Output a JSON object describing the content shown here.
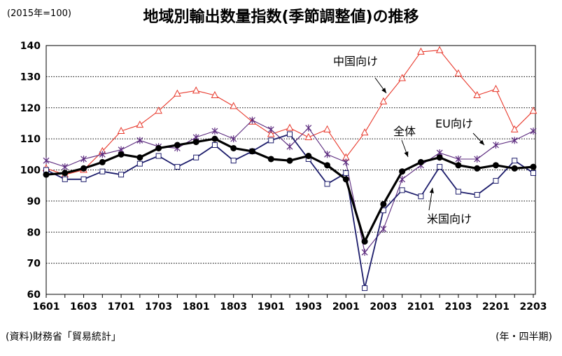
{
  "unit_label": "(2015年=100)",
  "title": "地域別輸出数量指数(季節調整値)の推移",
  "source": "(資料)財務省「貿易統計」",
  "x_unit_label": "(年・四半期)",
  "chart_data": {
    "type": "line",
    "title": "地域別輸出数量指数(季節調整値)の推移",
    "xlabel": "",
    "ylabel": "",
    "ylim": [
      60,
      140
    ],
    "yticks": [
      60,
      70,
      80,
      90,
      100,
      110,
      120,
      130,
      140
    ],
    "grid": "horizontal dotted",
    "x": [
      "1601",
      "1602",
      "1603",
      "1604",
      "1701",
      "1702",
      "1703",
      "1704",
      "1801",
      "1802",
      "1803",
      "1804",
      "1901",
      "1902",
      "1903",
      "1904",
      "2001",
      "2002",
      "2003",
      "2004",
      "2101",
      "2102",
      "2103",
      "2104",
      "2201",
      "2202",
      "2203"
    ],
    "x_tick_labels": [
      "1601",
      "1603",
      "1701",
      "1703",
      "1801",
      "1803",
      "1901",
      "1903",
      "2001",
      "2003",
      "2101",
      "2103",
      "2201",
      "2203"
    ],
    "series": [
      {
        "name": "中国向け",
        "color": "#e8392c",
        "marker": "triangle",
        "values": [
          100.5,
          98.5,
          100,
          106,
          112.5,
          114.5,
          119,
          124.5,
          125.5,
          124,
          120.5,
          115.5,
          111.5,
          113.5,
          110.5,
          113,
          104,
          112,
          122,
          129.5,
          138,
          138.5,
          131,
          124,
          126,
          113,
          119
        ]
      },
      {
        "name": "EU向け",
        "color": "#5b2a7e",
        "marker": "star",
        "values": [
          103,
          101,
          103.5,
          105,
          106.5,
          109.5,
          107.5,
          107,
          110.5,
          112.5,
          110,
          116,
          113,
          107.5,
          113.5,
          105,
          102.5,
          73.5,
          81,
          97,
          101.5,
          105.5,
          103.5,
          103.5,
          108,
          109.5,
          112.5
        ]
      },
      {
        "name": "米国向け",
        "color": "#1c1c6b",
        "marker": "square",
        "values": [
          100,
          97,
          97,
          99.5,
          98.5,
          102,
          104.5,
          101,
          104,
          108,
          103,
          106,
          109.5,
          111.5,
          103.5,
          95.5,
          99,
          62,
          87,
          93.5,
          91.5,
          101,
          93,
          92,
          96.5,
          103,
          99
        ]
      },
      {
        "name": "全体",
        "color": "#000000",
        "marker": "circle",
        "values": [
          98.5,
          99,
          100.5,
          102.5,
          105,
          104,
          107,
          108,
          109,
          110,
          107,
          106,
          103.5,
          103,
          104.5,
          101.5,
          97,
          77,
          89,
          99.5,
          102.5,
          104,
          101.5,
          100.5,
          101.5,
          100.5,
          101
        ]
      }
    ],
    "annotations": [
      {
        "text": "中国向け",
        "series": "中国向け"
      },
      {
        "text": "EU向け",
        "series": "EU向け"
      },
      {
        "text": "全体",
        "series": "全体"
      },
      {
        "text": "米国向け",
        "series": "米国向け"
      }
    ]
  }
}
